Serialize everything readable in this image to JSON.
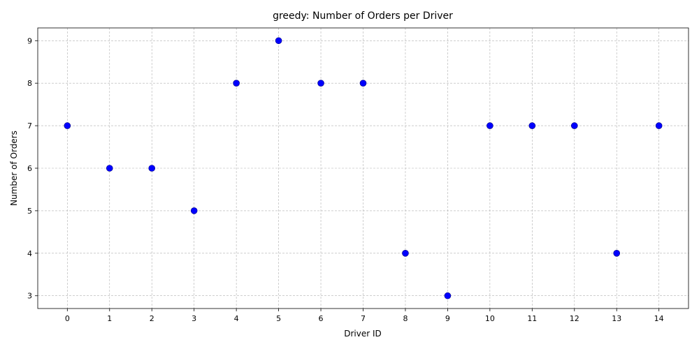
{
  "chart_data": {
    "type": "scatter",
    "title": "greedy: Number of Orders per Driver",
    "xlabel": "Driver ID",
    "ylabel": "Number of Orders",
    "x": [
      0,
      1,
      2,
      3,
      4,
      5,
      6,
      7,
      8,
      9,
      10,
      11,
      12,
      13,
      14
    ],
    "y": [
      7,
      6,
      6,
      5,
      8,
      9,
      8,
      8,
      4,
      3,
      7,
      7,
      7,
      4,
      7
    ],
    "xticks": [
      0,
      1,
      2,
      3,
      4,
      5,
      6,
      7,
      8,
      9,
      10,
      11,
      12,
      13,
      14
    ],
    "yticks": [
      3,
      4,
      5,
      6,
      7,
      8,
      9
    ],
    "xlim": [
      -0.7,
      14.7
    ],
    "ylim": [
      2.7,
      9.3
    ],
    "grid": true,
    "marker_color": "#0000ff"
  }
}
